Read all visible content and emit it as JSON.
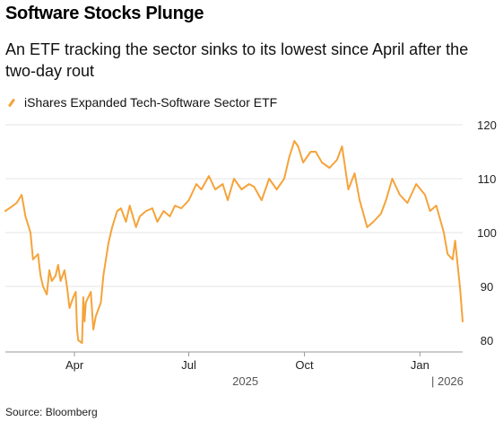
{
  "header": {
    "title": "Software Stocks Plunge",
    "subtitle": "An ETF tracking the sector sinks to its lowest since April after the two-day rout"
  },
  "legend": {
    "label": "iShares Expanded Tech-Software Sector ETF"
  },
  "footer": {
    "source": "Source: Bloomberg"
  },
  "colors": {
    "line": "#f5a33a",
    "grid": "#e6e6e6",
    "axis": "#9a9a9a"
  },
  "chart_data": {
    "type": "line",
    "title": "Software Stocks Plunge",
    "subtitle": "An ETF tracking the sector sinks to its lowest since April after the two-day rout",
    "xlabel": "",
    "ylabel": "",
    "ylim": [
      80,
      120
    ],
    "xlim": [
      "2025-02-05",
      "2026-02-04"
    ],
    "y_ticks": [
      80,
      90,
      100,
      110,
      120
    ],
    "x_ticks": [
      {
        "date": "2025-04-01",
        "label": "Apr"
      },
      {
        "date": "2025-07-01",
        "label": "Jul"
      },
      {
        "date": "2025-10-01",
        "label": "Oct"
      },
      {
        "date": "2026-01-01",
        "label": "Jan"
      }
    ],
    "year_labels": [
      {
        "date": "2025-08-15",
        "label": "2025"
      },
      {
        "date": "2026-01-10",
        "label": "| 2026"
      }
    ],
    "y_axis_position": "right",
    "grid": true,
    "legend_position": "top-left",
    "series": [
      {
        "name": "iShares Expanded Tech-Software Sector ETF",
        "x": [
          "2025-02-05",
          "2025-02-10",
          "2025-02-14",
          "2025-02-18",
          "2025-02-21",
          "2025-02-25",
          "2025-02-27",
          "2025-03-03",
          "2025-03-05",
          "2025-03-07",
          "2025-03-10",
          "2025-03-12",
          "2025-03-14",
          "2025-03-17",
          "2025-03-19",
          "2025-03-21",
          "2025-03-24",
          "2025-03-26",
          "2025-03-28",
          "2025-03-31",
          "2025-04-02",
          "2025-04-03",
          "2025-04-04",
          "2025-04-07",
          "2025-04-08",
          "2025-04-09",
          "2025-04-10",
          "2025-04-14",
          "2025-04-16",
          "2025-04-18",
          "2025-04-22",
          "2025-04-24",
          "2025-04-28",
          "2025-05-01",
          "2025-05-05",
          "2025-05-08",
          "2025-05-12",
          "2025-05-15",
          "2025-05-20",
          "2025-05-23",
          "2025-05-28",
          "2025-06-02",
          "2025-06-06",
          "2025-06-11",
          "2025-06-16",
          "2025-06-20",
          "2025-06-25",
          "2025-07-01",
          "2025-07-07",
          "2025-07-11",
          "2025-07-17",
          "2025-07-22",
          "2025-07-28",
          "2025-08-01",
          "2025-08-06",
          "2025-08-12",
          "2025-08-18",
          "2025-08-22",
          "2025-08-28",
          "2025-09-03",
          "2025-09-09",
          "2025-09-15",
          "2025-09-19",
          "2025-09-23",
          "2025-09-26",
          "2025-09-30",
          "2025-10-06",
          "2025-10-10",
          "2025-10-15",
          "2025-10-21",
          "2025-10-27",
          "2025-10-31",
          "2025-11-05",
          "2025-11-10",
          "2025-11-14",
          "2025-11-20",
          "2025-11-25",
          "2025-12-01",
          "2025-12-05",
          "2025-12-10",
          "2025-12-16",
          "2025-12-22",
          "2025-12-29",
          "2026-01-05",
          "2026-01-09",
          "2026-01-14",
          "2026-01-20",
          "2026-01-23",
          "2026-01-27",
          "2026-01-29",
          "2026-02-02",
          "2026-02-04"
        ],
        "values": [
          104,
          104.8,
          105.5,
          107,
          103,
          100,
          95,
          96,
          92,
          90,
          88.5,
          93,
          91,
          92,
          94,
          91,
          93,
          90,
          86,
          88,
          89,
          82,
          80,
          79.5,
          88,
          83.5,
          87,
          89,
          82,
          84.5,
          87,
          92,
          98,
          101,
          104,
          104.5,
          102,
          105,
          101,
          103,
          104,
          104.5,
          102,
          104,
          103,
          105,
          104.5,
          106,
          109,
          108,
          110.5,
          108,
          109,
          106,
          110,
          108,
          109,
          108.5,
          106,
          110,
          108,
          110,
          114,
          117,
          116,
          113,
          115,
          115,
          113,
          112,
          113.5,
          116,
          108,
          111,
          106,
          101,
          102,
          103.5,
          106,
          110,
          107,
          105.5,
          109,
          107,
          104,
          105,
          100,
          96,
          95,
          98.5,
          89.5,
          83.5
        ]
      }
    ]
  }
}
